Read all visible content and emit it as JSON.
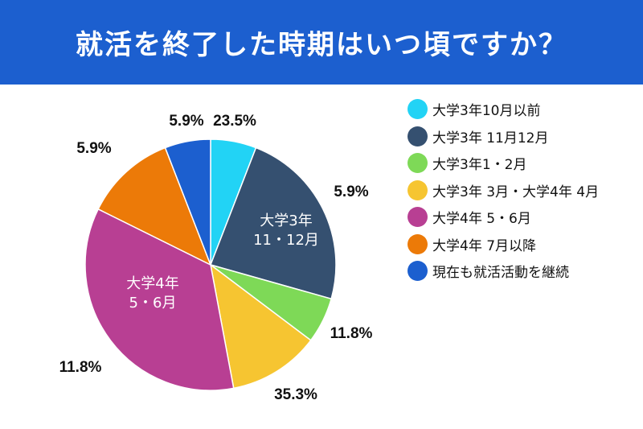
{
  "title": "就活を終了した時期はいつ頃ですか？",
  "chart_data": {
    "type": "pie",
    "title": "就活を終了した時期はいつ頃ですか？",
    "start": "top",
    "direction": "clockwise",
    "legend_position": "right",
    "slices": [
      {
        "label": "大学3年10月以前",
        "value": 5.9,
        "value_label": "5.9%",
        "color": "#22d3f5"
      },
      {
        "label": "大学3年 11月12月",
        "value": 23.5,
        "value_label": "23.5%",
        "color": "#355070",
        "inner_label": [
          "大学3年",
          "11・12月"
        ]
      },
      {
        "label": "大学3年1・2月",
        "value": 5.9,
        "value_label": "5.9%",
        "color": "#7ed957"
      },
      {
        "label": "大学3年 3月・大学4年 4月",
        "value": 11.8,
        "value_label": "11.8%",
        "color": "#f6c531"
      },
      {
        "label": "大学4年 5・6月",
        "value": 35.3,
        "value_label": "35.3%",
        "color": "#b83f93",
        "inner_label": [
          "大学4年",
          "5・6月"
        ]
      },
      {
        "label": "大学4年 7月以降",
        "value": 11.8,
        "value_label": "11.8%",
        "color": "#ec7a08"
      },
      {
        "label": "現在も就活活動を継続",
        "value": 5.9,
        "value_label": "5.9%",
        "color": "#1c5fcf"
      }
    ]
  }
}
